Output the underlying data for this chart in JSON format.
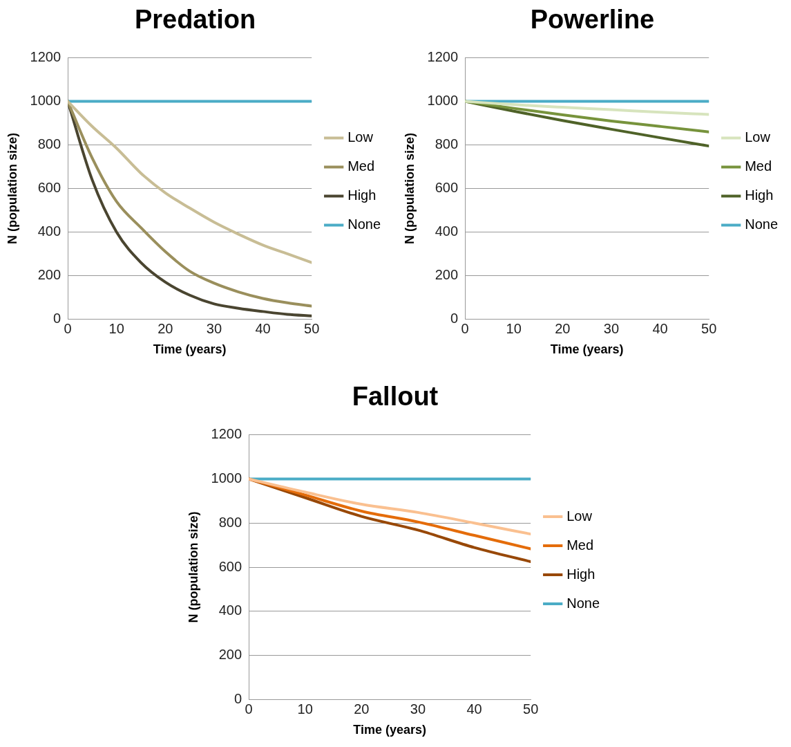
{
  "chart_data": [
    {
      "type": "line",
      "title": "Predation",
      "xlabel": "Time (years)",
      "ylabel": "N (population size)",
      "x": [
        0,
        5,
        10,
        15,
        20,
        25,
        30,
        35,
        40,
        45,
        50
      ],
      "xlim": [
        0,
        50
      ],
      "xticks": [
        0,
        10,
        20,
        30,
        40,
        50
      ],
      "ylim": [
        0,
        1200
      ],
      "yticks": [
        0,
        200,
        400,
        600,
        800,
        1000,
        1200
      ],
      "grid": "y",
      "legend": "right",
      "marker": "none",
      "series": [
        {
          "name": "Low",
          "color": "#c8bd95",
          "values": [
            1000,
            885,
            785,
            670,
            580,
            510,
            445,
            390,
            340,
            300,
            260
          ]
        },
        {
          "name": "Med",
          "color": "#9a8f5c",
          "values": [
            1000,
            740,
            540,
            420,
            310,
            220,
            165,
            125,
            95,
            75,
            60
          ]
        },
        {
          "name": "High",
          "color": "#4a4530",
          "values": [
            1000,
            640,
            400,
            260,
            170,
            110,
            70,
            50,
            35,
            22,
            15
          ]
        },
        {
          "name": "None",
          "color": "#4bacc6",
          "values": [
            1000,
            1000,
            1000,
            1000,
            1000,
            1000,
            1000,
            1000,
            1000,
            1000,
            1000
          ]
        }
      ]
    },
    {
      "type": "line",
      "title": "Powerline",
      "xlabel": "Time (years)",
      "ylabel": "N (population size)",
      "x": [
        0,
        10,
        20,
        30,
        40,
        50
      ],
      "xlim": [
        0,
        50
      ],
      "xticks": [
        0,
        10,
        20,
        30,
        40,
        50
      ],
      "ylim": [
        0,
        1200
      ],
      "yticks": [
        0,
        200,
        400,
        600,
        800,
        1000,
        1200
      ],
      "grid": "y",
      "legend": "right",
      "marker": "none",
      "series": [
        {
          "name": "Low",
          "color": "#d7e4bd",
          "values": [
            1000,
            985,
            973,
            962,
            950,
            940
          ]
        },
        {
          "name": "Med",
          "color": "#77933c",
          "values": [
            1000,
            968,
            938,
            910,
            885,
            860
          ]
        },
        {
          "name": "High",
          "color": "#4f6228",
          "values": [
            1000,
            955,
            912,
            872,
            833,
            795
          ]
        },
        {
          "name": "None",
          "color": "#4bacc6",
          "values": [
            1000,
            1000,
            1000,
            1000,
            1000,
            1000
          ]
        }
      ]
    },
    {
      "type": "line",
      "title": "Fallout",
      "xlabel": "Time (years)",
      "ylabel": "N (population size)",
      "x": [
        0,
        10,
        20,
        30,
        40,
        50
      ],
      "xlim": [
        0,
        50
      ],
      "xticks": [
        0,
        10,
        20,
        30,
        40,
        50
      ],
      "ylim": [
        0,
        1200
      ],
      "yticks": [
        0,
        200,
        400,
        600,
        800,
        1000,
        1200
      ],
      "grid": "y",
      "legend": "right",
      "marker": "none",
      "series": [
        {
          "name": "Low",
          "color": "#fac090",
          "values": [
            1000,
            940,
            885,
            848,
            800,
            750
          ]
        },
        {
          "name": "Med",
          "color": "#e46c0a",
          "values": [
            1000,
            927,
            854,
            805,
            744,
            683
          ]
        },
        {
          "name": "High",
          "color": "#984807",
          "values": [
            1000,
            915,
            830,
            768,
            689,
            625
          ]
        },
        {
          "name": "None",
          "color": "#4bacc6",
          "values": [
            1000,
            1000,
            1000,
            1000,
            1000,
            1000
          ]
        }
      ]
    }
  ]
}
